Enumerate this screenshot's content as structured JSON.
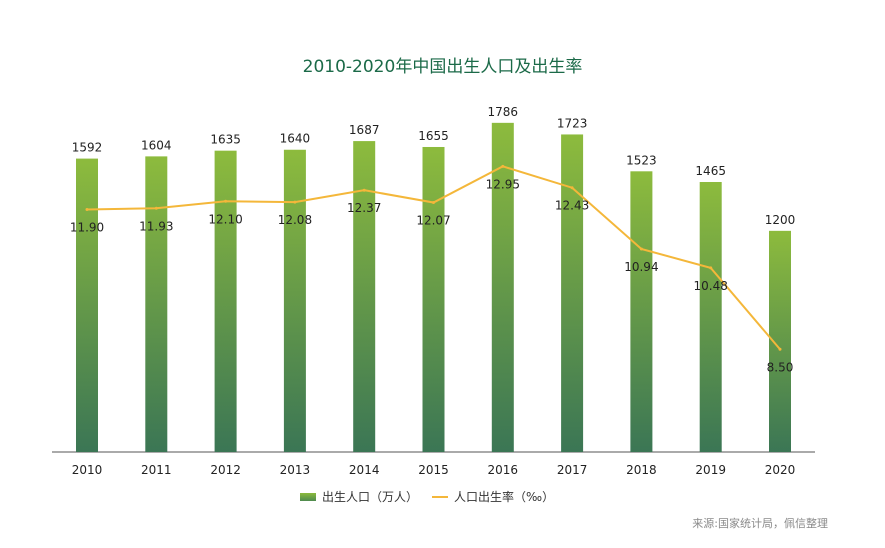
{
  "chart_data": {
    "type": "bar+line",
    "title": "2010-2020年中国出生人口及出生率",
    "categories": [
      "2010",
      "2011",
      "2012",
      "2013",
      "2014",
      "2015",
      "2016",
      "2017",
      "2018",
      "2019",
      "2020"
    ],
    "series": [
      {
        "name": "出生人口（万人）",
        "type": "bar",
        "values": [
          1592,
          1604,
          1635,
          1640,
          1687,
          1655,
          1786,
          1723,
          1523,
          1465,
          1200
        ],
        "color": "#8cba3c"
      },
      {
        "name": "人口出生率（‰）",
        "type": "line",
        "values": [
          11.9,
          11.93,
          12.1,
          12.08,
          12.37,
          12.07,
          12.95,
          12.43,
          10.94,
          10.48,
          8.5
        ],
        "color": "#f4b73a"
      }
    ],
    "ylim_bar": [
      0,
      1900
    ],
    "ylim_line": [
      6,
      14
    ],
    "grid": false,
    "legend": "bottom",
    "source": "来源:国家统计局，佩信整理"
  }
}
